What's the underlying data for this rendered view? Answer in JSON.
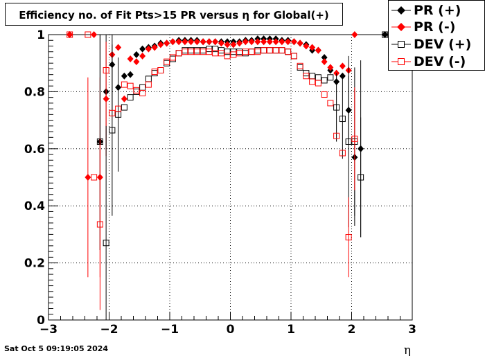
{
  "title": "Efficiency no. of Fit Pts>15 PR versus η for Global(+)",
  "timestamp": "Sat Oct  5 09:19:05 2024",
  "legend": [
    {
      "label": "PR (+)",
      "color": "#000000",
      "marker": "diamond-filled"
    },
    {
      "label": "PR (-)",
      "color": "#ff0000",
      "marker": "diamond-filled"
    },
    {
      "label": "DEV (+)",
      "color": "#000000",
      "marker": "square-open"
    },
    {
      "label": "DEV (-)",
      "color": "#ff0000",
      "marker": "square-open"
    }
  ],
  "chart_data": {
    "type": "scatter",
    "title": "Efficiency no. of Fit Pts>15 PR versus η for Global(+)",
    "xlabel": "η",
    "ylabel": "",
    "xlim": [
      -3,
      3
    ],
    "ylim": [
      0,
      1.0
    ],
    "x_ticks": [
      "−3",
      "−2",
      "−1",
      "0",
      "1",
      "2",
      "3"
    ],
    "y_ticks": [
      "0",
      "0.2",
      "0.4",
      "0.6",
      "0.8",
      "1"
    ],
    "grid": true,
    "series": [
      {
        "name": "PR (+)",
        "color": "#000000",
        "marker": "diamond-filled",
        "x": [
          -2.65,
          -2.15,
          -2.05,
          -1.95,
          -1.85,
          -1.75,
          -1.65,
          -1.55,
          -1.45,
          -1.35,
          -1.25,
          -1.15,
          -1.05,
          -0.95,
          -0.85,
          -0.75,
          -0.65,
          -0.55,
          -0.45,
          -0.35,
          -0.25,
          -0.15,
          -0.05,
          0.05,
          0.15,
          0.25,
          0.35,
          0.45,
          0.55,
          0.65,
          0.75,
          0.85,
          0.95,
          1.05,
          1.15,
          1.25,
          1.35,
          1.45,
          1.55,
          1.65,
          1.75,
          1.85,
          1.95,
          2.05,
          2.15,
          2.55
        ],
        "y": [
          1.0,
          0.625,
          0.8,
          0.895,
          0.815,
          0.855,
          0.86,
          0.93,
          0.95,
          0.955,
          0.96,
          0.97,
          0.97,
          0.975,
          0.98,
          0.98,
          0.98,
          0.98,
          0.975,
          0.975,
          0.975,
          0.975,
          0.975,
          0.975,
          0.975,
          0.98,
          0.98,
          0.985,
          0.985,
          0.985,
          0.985,
          0.98,
          0.98,
          0.975,
          0.97,
          0.965,
          0.945,
          0.945,
          0.92,
          0.875,
          0.835,
          0.855,
          0.735,
          0.57,
          0.6,
          1.0
        ],
        "err": [
          0,
          0.38,
          0.2,
          0.16,
          0,
          0,
          0,
          0,
          0,
          0,
          0,
          0,
          0,
          0,
          0,
          0,
          0,
          0,
          0,
          0,
          0,
          0,
          0,
          0,
          0,
          0,
          0,
          0,
          0,
          0,
          0,
          0,
          0,
          0,
          0,
          0,
          0,
          0,
          0,
          0,
          0,
          0,
          0.12,
          0.24,
          0.31,
          0
        ]
      },
      {
        "name": "PR (-)",
        "color": "#ff0000",
        "marker": "diamond-filled",
        "x": [
          -2.65,
          -2.35,
          -2.25,
          -2.15,
          -2.05,
          -1.95,
          -1.85,
          -1.75,
          -1.65,
          -1.55,
          -1.45,
          -1.35,
          -1.25,
          -1.15,
          -1.05,
          -0.95,
          -0.85,
          -0.75,
          -0.65,
          -0.55,
          -0.45,
          -0.35,
          -0.25,
          -0.15,
          -0.05,
          0.05,
          0.15,
          0.25,
          0.35,
          0.45,
          0.55,
          0.65,
          0.75,
          0.85,
          0.95,
          1.05,
          1.15,
          1.25,
          1.35,
          1.45,
          1.55,
          1.65,
          1.75,
          1.85,
          1.95,
          2.05
        ],
        "y": [
          1.0,
          0.5,
          1.0,
          0.5,
          0.775,
          0.93,
          0.955,
          0.775,
          0.915,
          0.905,
          0.925,
          0.95,
          0.955,
          0.965,
          0.97,
          0.975,
          0.975,
          0.975,
          0.975,
          0.975,
          0.975,
          0.975,
          0.975,
          0.97,
          0.965,
          0.965,
          0.97,
          0.975,
          0.975,
          0.975,
          0.975,
          0.975,
          0.975,
          0.975,
          0.975,
          0.975,
          0.97,
          0.96,
          0.955,
          0.945,
          0.905,
          0.885,
          0.865,
          0.89,
          0.875,
          1.0
        ],
        "err": [
          0,
          0.35,
          0,
          0.35,
          0.2,
          0,
          0,
          0,
          0,
          0,
          0,
          0,
          0,
          0,
          0,
          0,
          0,
          0,
          0,
          0,
          0,
          0,
          0,
          0,
          0,
          0,
          0,
          0,
          0,
          0,
          0,
          0,
          0,
          0,
          0,
          0,
          0,
          0,
          0,
          0,
          0,
          0,
          0,
          0,
          0,
          0
        ]
      },
      {
        "name": "DEV (+)",
        "color": "#000000",
        "marker": "square-open",
        "x": [
          -2.15,
          -2.05,
          -1.95,
          -1.85,
          -1.75,
          -1.65,
          -1.55,
          -1.45,
          -1.35,
          -1.25,
          -1.15,
          -1.05,
          -0.95,
          -0.85,
          -0.75,
          -0.65,
          -0.55,
          -0.45,
          -0.35,
          -0.25,
          -0.15,
          -0.05,
          0.05,
          0.15,
          0.25,
          0.35,
          0.45,
          0.55,
          0.65,
          0.75,
          0.85,
          0.95,
          1.05,
          1.15,
          1.25,
          1.35,
          1.45,
          1.55,
          1.65,
          1.75,
          1.85,
          1.95,
          2.05,
          2.15,
          2.55
        ],
        "y": [
          0.625,
          0.27,
          0.665,
          0.72,
          0.745,
          0.78,
          0.8,
          0.815,
          0.845,
          0.865,
          0.875,
          0.9,
          0.915,
          0.935,
          0.945,
          0.945,
          0.945,
          0.945,
          0.95,
          0.95,
          0.945,
          0.94,
          0.94,
          0.94,
          0.935,
          0.94,
          0.945,
          0.945,
          0.945,
          0.945,
          0.945,
          0.94,
          0.925,
          0.885,
          0.865,
          0.855,
          0.85,
          0.84,
          0.85,
          0.745,
          0.705,
          0.625,
          0.625,
          0.5,
          1.0
        ],
        "err": [
          0.38,
          0.41,
          0.3,
          0.2,
          0,
          0,
          0,
          0,
          0,
          0,
          0,
          0,
          0,
          0,
          0,
          0,
          0,
          0,
          0,
          0,
          0,
          0,
          0,
          0,
          0,
          0,
          0,
          0,
          0,
          0,
          0,
          0,
          0,
          0,
          0,
          0,
          0,
          0,
          0,
          0.12,
          0.14,
          0.3,
          0.26,
          0.21,
          0
        ]
      },
      {
        "name": "DEV (-)",
        "color": "#ff0000",
        "marker": "square-open",
        "x": [
          -2.65,
          -2.35,
          -2.25,
          -2.15,
          -2.05,
          -1.95,
          -1.85,
          -1.75,
          -1.65,
          -1.55,
          -1.45,
          -1.35,
          -1.25,
          -1.15,
          -1.05,
          -0.95,
          -0.85,
          -0.75,
          -0.65,
          -0.55,
          -0.45,
          -0.35,
          -0.25,
          -0.15,
          -0.05,
          0.05,
          0.15,
          0.25,
          0.35,
          0.45,
          0.55,
          0.65,
          0.75,
          0.85,
          0.95,
          1.05,
          1.15,
          1.25,
          1.35,
          1.45,
          1.55,
          1.65,
          1.75,
          1.85,
          1.95,
          2.05
        ],
        "y": [
          1.0,
          1.0,
          0.5,
          0.335,
          0.875,
          0.725,
          0.74,
          0.825,
          0.82,
          0.805,
          0.795,
          0.825,
          0.87,
          0.875,
          0.905,
          0.92,
          0.935,
          0.94,
          0.94,
          0.94,
          0.94,
          0.94,
          0.935,
          0.935,
          0.925,
          0.93,
          0.935,
          0.94,
          0.94,
          0.94,
          0.945,
          0.945,
          0.945,
          0.945,
          0.94,
          0.925,
          0.89,
          0.855,
          0.835,
          0.83,
          0.79,
          0.76,
          0.645,
          0.585,
          0.29,
          0.635
        ],
        "err": [
          0,
          0,
          0,
          0.3,
          0,
          0,
          0,
          0,
          0,
          0,
          0,
          0,
          0,
          0,
          0,
          0,
          0,
          0,
          0,
          0,
          0,
          0,
          0,
          0,
          0,
          0,
          0,
          0,
          0,
          0,
          0,
          0,
          0,
          0,
          0,
          0,
          0,
          0,
          0,
          0,
          0,
          0,
          0,
          0,
          0.14,
          0.18
        ]
      }
    ]
  }
}
